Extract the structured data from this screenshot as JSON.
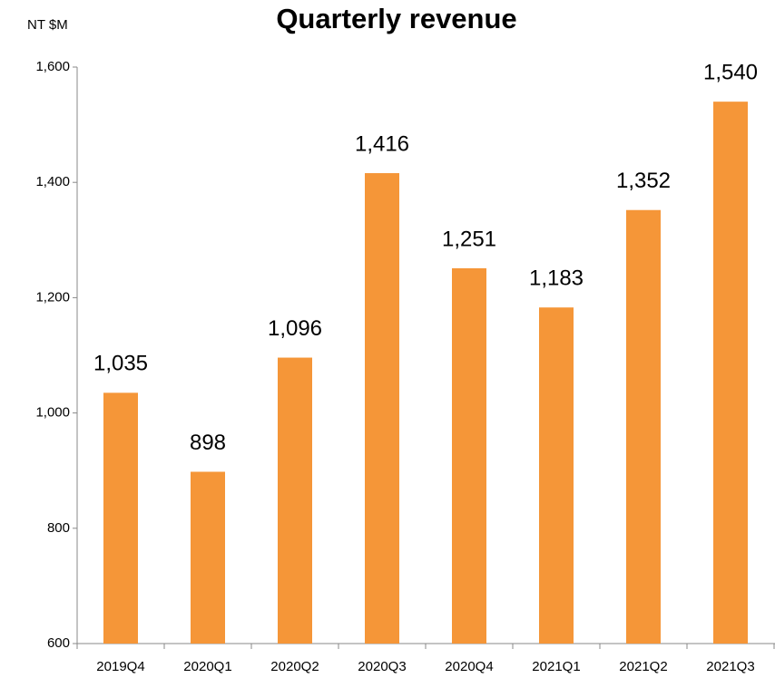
{
  "chart_data": {
    "type": "bar",
    "title": "Quarterly revenue",
    "y_axis_label": "NT $M",
    "categories": [
      "2019Q4",
      "2020Q1",
      "2020Q2",
      "2020Q3",
      "2020Q4",
      "2021Q1",
      "2021Q2",
      "2021Q3"
    ],
    "values": [
      1035,
      898,
      1096,
      1416,
      1251,
      1183,
      1352,
      1540
    ],
    "value_labels": [
      "1,035",
      "898",
      "1,096",
      "1,416",
      "1,251",
      "1,183",
      "1,352",
      "1,540"
    ],
    "color": "#f59638",
    "ylim": [
      600,
      1600
    ],
    "yticks": [
      600,
      800,
      {
        "value": 1000,
        "label": "1,000"
      },
      {
        "value": 1200,
        "label": "1,200"
      },
      {
        "value": 1400,
        "label": "1,400"
      },
      {
        "value": 1600,
        "label": "1,600"
      }
    ],
    "grid": false
  }
}
